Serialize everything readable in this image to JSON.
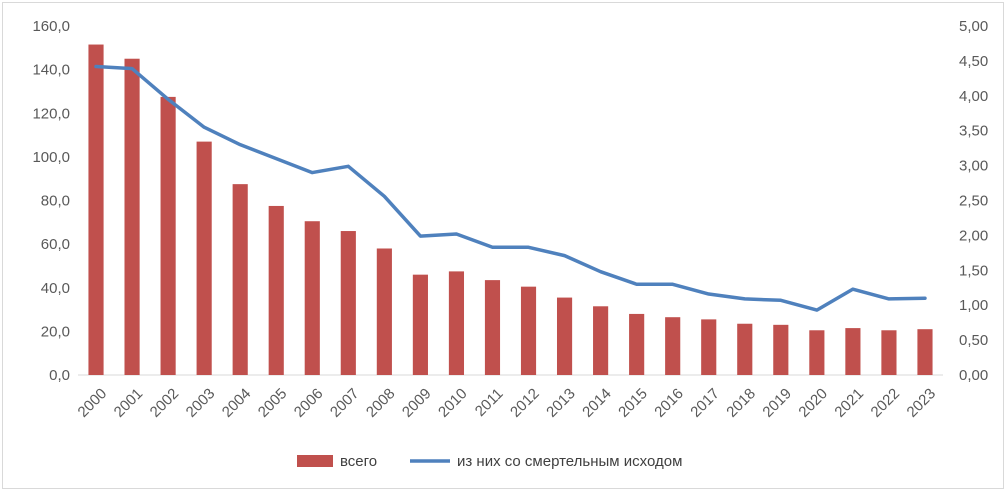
{
  "chart_data": {
    "type": "bar+line",
    "categories": [
      "2000",
      "2001",
      "2002",
      "2003",
      "2004",
      "2005",
      "2006",
      "2007",
      "2008",
      "2009",
      "2010",
      "2011",
      "2012",
      "2013",
      "2014",
      "2015",
      "2016",
      "2017",
      "2018",
      "2019",
      "2020",
      "2021",
      "2022",
      "2023"
    ],
    "series": [
      {
        "name": "всего",
        "type": "bar",
        "axis": "left",
        "color": "#c0504d",
        "values": [
          151.5,
          145,
          127.5,
          107,
          87.5,
          77.5,
          70.5,
          66,
          58,
          46,
          47.5,
          43.5,
          40.5,
          35.5,
          31.5,
          28,
          26.5,
          25.5,
          23.5,
          23,
          20.5,
          21.5,
          20.5,
          21
        ]
      },
      {
        "name": "из них со смертельным исходом",
        "type": "line",
        "axis": "right",
        "color": "#4f81bd",
        "values": [
          4.42,
          4.39,
          3.95,
          3.55,
          3.3,
          3.1,
          2.9,
          2.99,
          2.56,
          1.99,
          2.02,
          1.83,
          1.83,
          1.71,
          1.48,
          1.3,
          1.3,
          1.16,
          1.09,
          1.07,
          0.93,
          1.23,
          1.09,
          1.1
        ]
      }
    ],
    "y_left": {
      "ylim": [
        0,
        160
      ],
      "ticks": [
        "0,0",
        "20,0",
        "40,0",
        "60,0",
        "80,0",
        "100,0",
        "120,0",
        "140,0",
        "160,0"
      ]
    },
    "y_right": {
      "ylim": [
        0,
        5
      ],
      "ticks": [
        "0,00",
        "0,50",
        "1,00",
        "1,50",
        "2,00",
        "2,50",
        "3,00",
        "3,50",
        "4,00",
        "4,50",
        "5,00"
      ]
    },
    "grid": false,
    "legend": {
      "placement": "bottom",
      "items": [
        "всего",
        "из них со смертельным исходом"
      ]
    }
  }
}
